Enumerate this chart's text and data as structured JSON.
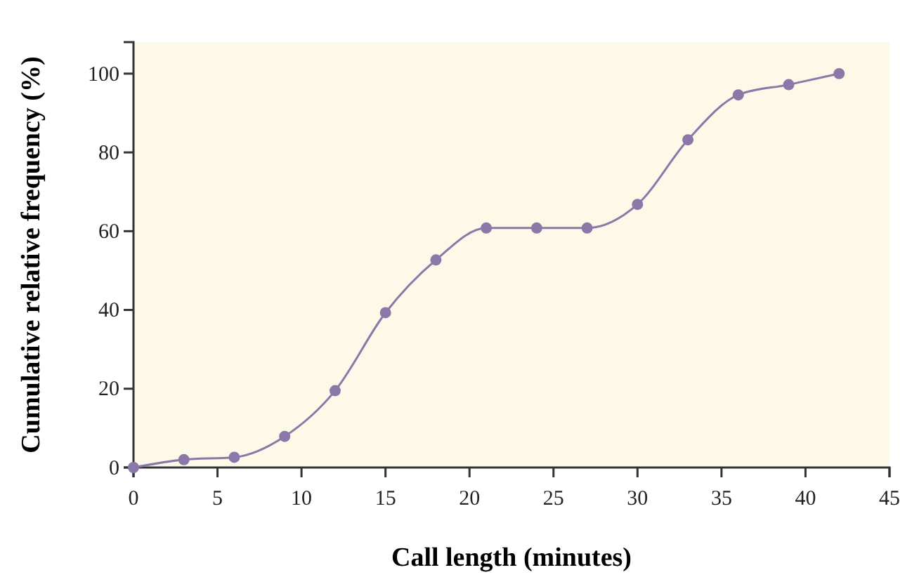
{
  "chart_data": {
    "type": "line",
    "xlabel": "Call length (minutes)",
    "ylabel": "Cumulative relative frequency (%)",
    "x": [
      0,
      3,
      6,
      9,
      12,
      15,
      18,
      21,
      24,
      27,
      30,
      33,
      36,
      39,
      42
    ],
    "series": [
      {
        "color": "#8b78a8",
        "values": [
          0,
          2,
          2.6,
          7.9,
          19.5,
          39.3,
          52.7,
          60.8,
          60.8,
          60.8,
          66.8,
          83.2,
          94.6,
          97.2,
          100
        ]
      }
    ],
    "xlim": [
      0,
      45
    ],
    "xticks": [
      0,
      5,
      10,
      15,
      20,
      25,
      30,
      35,
      40,
      45
    ],
    "ylim": [
      0,
      108
    ],
    "yticks": [
      0,
      20,
      40,
      60,
      80,
      100
    ],
    "marker": "circle",
    "line_style": "solid",
    "grid": false
  }
}
